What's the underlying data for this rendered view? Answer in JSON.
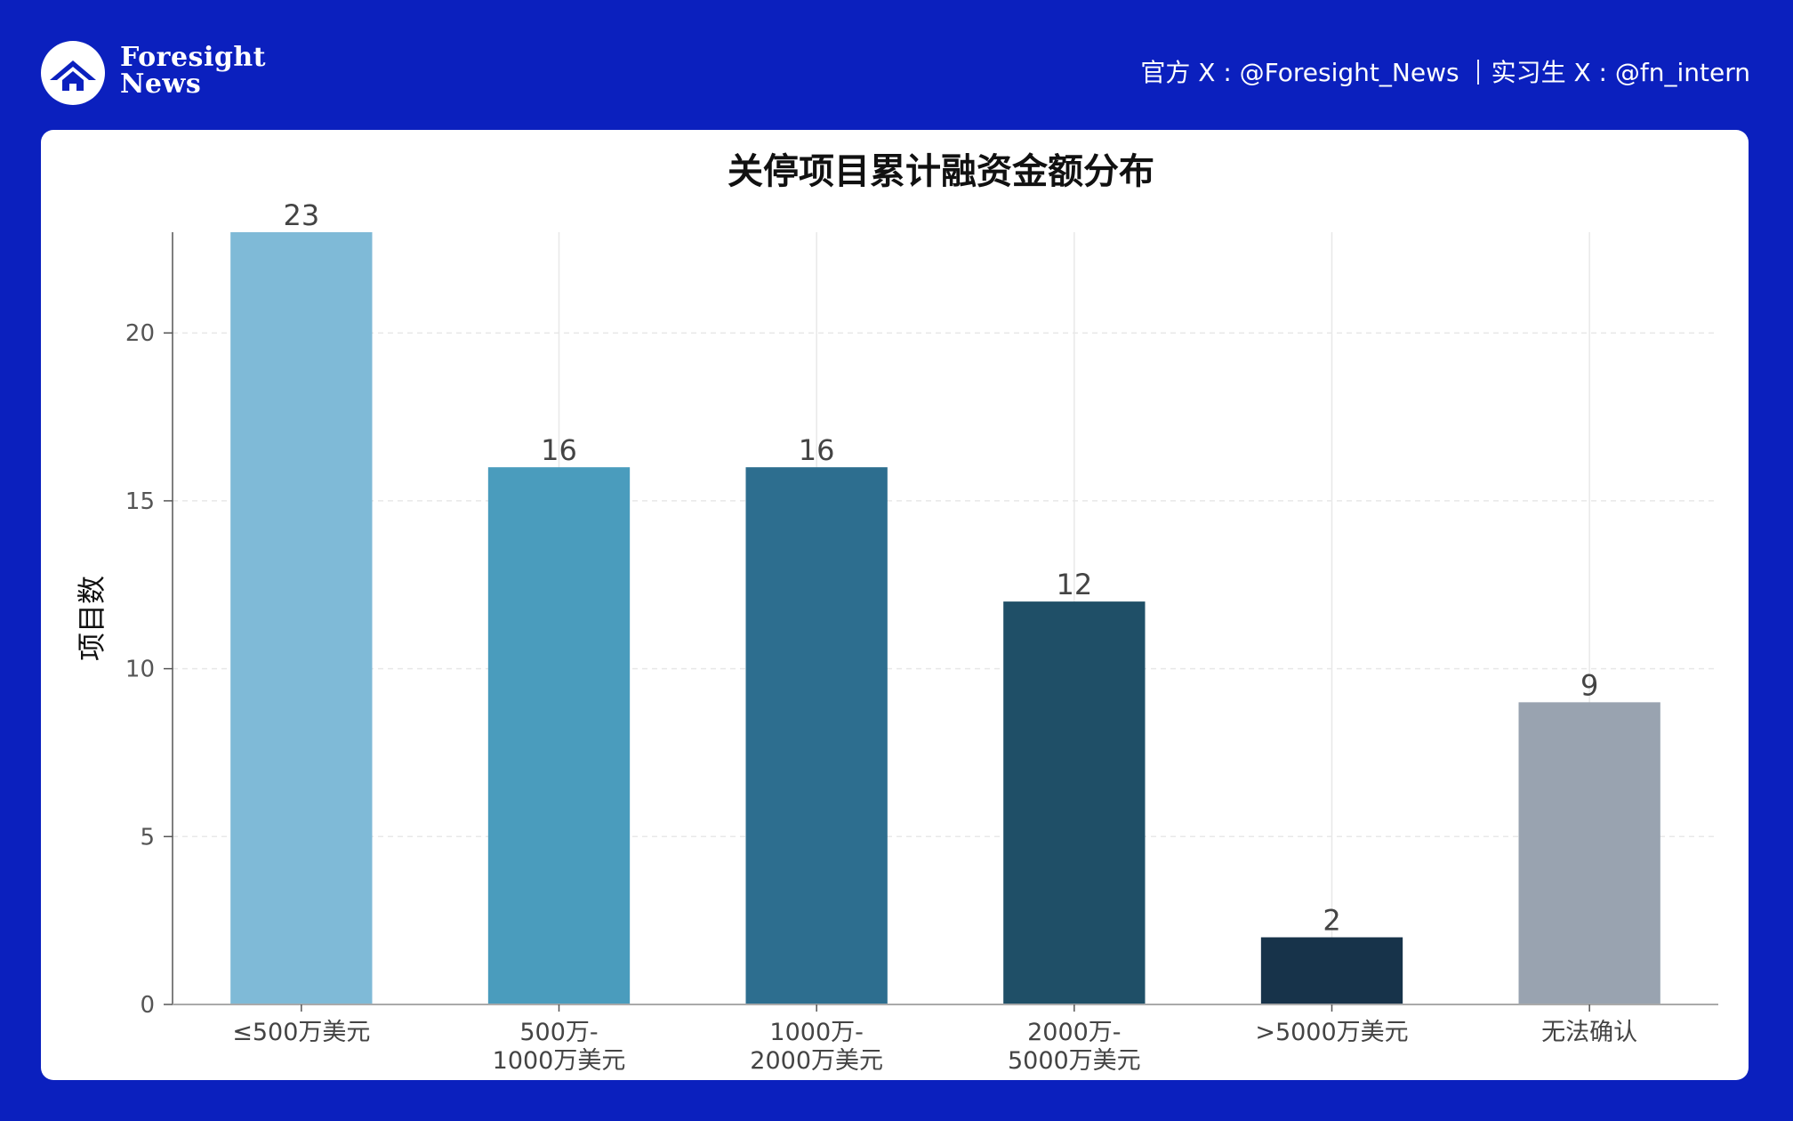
{
  "header": {
    "brand_line1": "Foresight",
    "brand_line2": "News",
    "official_x": "官方 X : @Foresight_News",
    "intern_x": "实习生 X : @fn_intern"
  },
  "colors": {
    "background": "#0b20be",
    "card": "#ffffff",
    "grid": "#e8e8e8",
    "axis": "#555555",
    "tick_text": "#555555",
    "label_text": "#444444"
  },
  "chart_data": {
    "type": "bar",
    "title": "关停项目累计融资金额分布",
    "xlabel": "",
    "ylabel": "项目数",
    "categories": [
      [
        "≤500万美元"
      ],
      [
        "500万-",
        "1000万美元"
      ],
      [
        "1000万-",
        "2000万美元"
      ],
      [
        "2000万-",
        "5000万美元"
      ],
      [
        ">5000万美元"
      ],
      [
        "无法确认"
      ]
    ],
    "values": [
      23,
      16,
      16,
      12,
      2,
      9
    ],
    "bar_colors": [
      "#7fbad7",
      "#4a9cbd",
      "#2d6e8f",
      "#1f4f67",
      "#17334a",
      "#99a3b0"
    ],
    "yticks": [
      0,
      5,
      10,
      15,
      20
    ],
    "ylim": [
      0,
      23
    ],
    "grid": true,
    "legend": "none"
  }
}
